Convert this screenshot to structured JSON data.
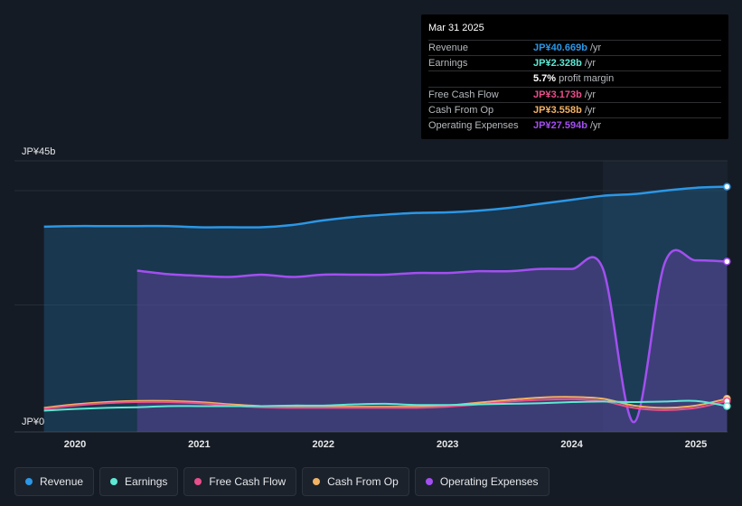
{
  "tooltip": {
    "date": "Mar 31 2025",
    "rows": [
      {
        "label": "Revenue",
        "value": "JP¥40.669b",
        "unit": "/yr",
        "color": "#2b97e6"
      },
      {
        "label": "Earnings",
        "value": "JP¥2.328b",
        "unit": "/yr",
        "color": "#5ee8d4"
      },
      {
        "label": "",
        "value": "5.7%",
        "unit": "profit margin",
        "color": "#ffffff"
      },
      {
        "label": "Free Cash Flow",
        "value": "JP¥3.173b",
        "unit": "/yr",
        "color": "#ea4f8b"
      },
      {
        "label": "Cash From Op",
        "value": "JP¥3.558b",
        "unit": "/yr",
        "color": "#f4b263"
      },
      {
        "label": "Operating Expenses",
        "value": "JP¥27.594b",
        "unit": "/yr",
        "color": "#a34ff0"
      }
    ]
  },
  "legend": [
    {
      "label": "Revenue",
      "color": "#2b97e6"
    },
    {
      "label": "Earnings",
      "color": "#5ee8d4"
    },
    {
      "label": "Free Cash Flow",
      "color": "#ea4f8b"
    },
    {
      "label": "Cash From Op",
      "color": "#f4b263"
    },
    {
      "label": "Operating Expenses",
      "color": "#a34ff0"
    }
  ],
  "chart_data": {
    "type": "area",
    "y_top_label": "JP¥45b",
    "y_zero_label": "JP¥0",
    "ylim": [
      0,
      45
    ],
    "xlim": [
      2019.7,
      2025.25
    ],
    "x_tick_labels": [
      "2020",
      "2021",
      "2022",
      "2023",
      "2024",
      "2025"
    ],
    "x_ticks": [
      2020,
      2021,
      2022,
      2023,
      2024,
      2025
    ],
    "gridlines": [
      0,
      20,
      40
    ],
    "highlight_start": 2024.25,
    "series": [
      {
        "name": "Revenue",
        "color": "#2b97e6",
        "fill": true,
        "x": [
          2019.75,
          2020.0,
          2020.25,
          2020.5,
          2020.75,
          2021.0,
          2021.25,
          2021.5,
          2021.75,
          2022.0,
          2022.25,
          2022.5,
          2022.75,
          2023.0,
          2023.25,
          2023.5,
          2023.75,
          2024.0,
          2024.25,
          2024.5,
          2024.75,
          2025.0,
          2025.25
        ],
        "y": [
          33.7,
          33.8,
          33.8,
          33.8,
          33.8,
          33.6,
          33.6,
          33.6,
          34.0,
          34.8,
          35.4,
          35.8,
          36.1,
          36.2,
          36.5,
          37.0,
          37.7,
          38.4,
          39.1,
          39.4,
          40.0,
          40.5,
          40.7
        ]
      },
      {
        "name": "Operating Expenses",
        "color": "#a34ff0",
        "fill": true,
        "x": [
          2020.5,
          2020.75,
          2021.0,
          2021.25,
          2021.5,
          2021.75,
          2022.0,
          2022.25,
          2022.5,
          2022.75,
          2023.0,
          2023.25,
          2023.5,
          2023.75,
          2024.0,
          2024.25,
          2024.5,
          2024.75,
          2025.0,
          2025.25
        ],
        "y": [
          26.0,
          25.4,
          25.1,
          24.9,
          25.3,
          24.9,
          25.3,
          25.3,
          25.3,
          25.6,
          25.6,
          25.9,
          25.9,
          26.3,
          26.3,
          26.4,
          -0.5,
          27.4,
          27.8,
          27.6
        ]
      },
      {
        "name": "Cash From Op",
        "color": "#f4b263",
        "fill": false,
        "x": [
          2019.75,
          2020.0,
          2020.25,
          2020.5,
          2020.75,
          2021.0,
          2021.25,
          2021.5,
          2021.75,
          2022.0,
          2022.25,
          2022.5,
          2022.75,
          2023.0,
          2023.25,
          2023.5,
          2023.75,
          2024.0,
          2024.25,
          2024.5,
          2024.75,
          2025.0,
          2025.25
        ],
        "y": [
          2.0,
          2.6,
          3.0,
          3.2,
          3.2,
          3.0,
          2.6,
          2.3,
          2.2,
          2.2,
          2.2,
          2.2,
          2.2,
          2.4,
          2.9,
          3.4,
          3.8,
          3.9,
          3.6,
          2.4,
          2.0,
          2.4,
          3.6
        ]
      },
      {
        "name": "Free Cash Flow",
        "color": "#ea4f8b",
        "fill": false,
        "x": [
          2019.75,
          2020.0,
          2020.25,
          2020.5,
          2020.75,
          2021.0,
          2021.25,
          2021.5,
          2021.75,
          2022.0,
          2022.25,
          2022.5,
          2022.75,
          2023.0,
          2023.25,
          2023.5,
          2023.75,
          2024.0,
          2024.25,
          2024.5,
          2024.75,
          2025.0,
          2025.25
        ],
        "y": [
          1.8,
          2.4,
          2.8,
          3.0,
          3.0,
          2.8,
          2.4,
          2.1,
          2.0,
          2.0,
          2.0,
          2.0,
          2.0,
          2.2,
          2.6,
          3.1,
          3.4,
          3.5,
          3.2,
          2.0,
          1.6,
          2.0,
          3.2
        ]
      },
      {
        "name": "Earnings",
        "color": "#5ee8d4",
        "fill": false,
        "x": [
          2019.75,
          2020.0,
          2020.25,
          2020.5,
          2020.75,
          2021.0,
          2021.25,
          2021.5,
          2021.75,
          2022.0,
          2022.25,
          2022.5,
          2022.75,
          2023.0,
          2023.25,
          2023.5,
          2023.75,
          2024.0,
          2024.25,
          2024.5,
          2024.75,
          2025.0,
          2025.25
        ],
        "y": [
          1.5,
          1.8,
          2.0,
          2.1,
          2.3,
          2.3,
          2.3,
          2.3,
          2.4,
          2.4,
          2.6,
          2.7,
          2.5,
          2.5,
          2.6,
          2.7,
          2.8,
          3.0,
          3.1,
          3.0,
          3.1,
          3.2,
          2.3
        ]
      }
    ]
  }
}
